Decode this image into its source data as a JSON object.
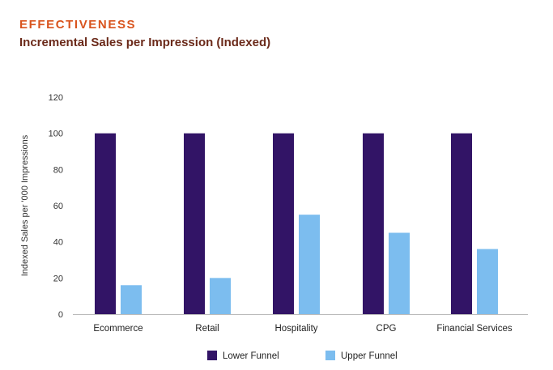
{
  "header": {
    "eyebrow": "EFFECTIVENESS",
    "title": "Incremental Sales per Impression (Indexed)"
  },
  "colors": {
    "eyebrow": "#d9541e",
    "title": "#6b2a1a",
    "lower_funnel": "#321466",
    "upper_funnel": "#7cbdef"
  },
  "chart_data": {
    "type": "bar",
    "title": "Incremental Sales per Impression (Indexed)",
    "xlabel": "",
    "ylabel": "Indexed Sales per '000 Impressions",
    "ylim": [
      0,
      120
    ],
    "yticks": [
      0,
      20,
      40,
      60,
      80,
      100,
      120
    ],
    "categories": [
      "Ecommerce",
      "Retail",
      "Hospitality",
      "CPG",
      "Financial Services"
    ],
    "series": [
      {
        "name": "Lower Funnel",
        "color": "#321466",
        "values": [
          100,
          100,
          100,
          100,
          100
        ]
      },
      {
        "name": "Upper Funnel",
        "color": "#7cbdef",
        "values": [
          16,
          20,
          55,
          45,
          36
        ]
      }
    ],
    "grid": false,
    "legend_position": "bottom-center"
  }
}
